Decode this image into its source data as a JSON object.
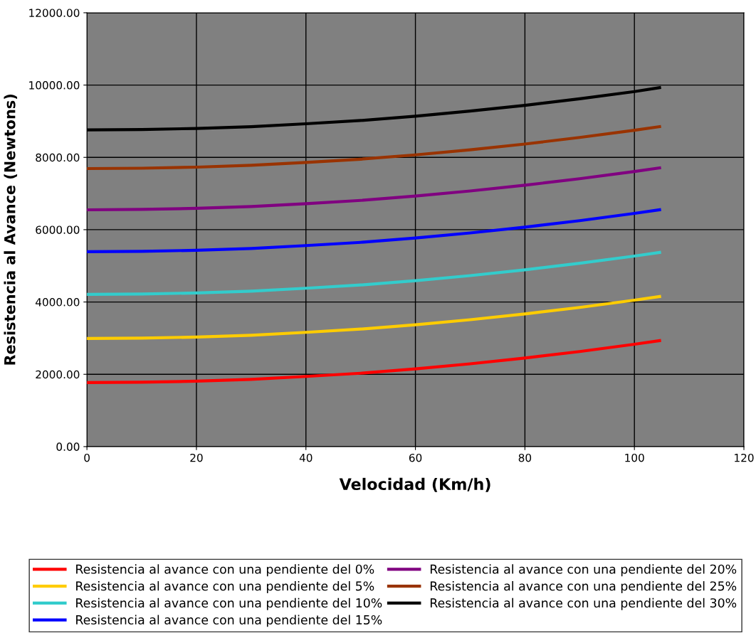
{
  "chart_data": {
    "type": "line",
    "xlabel": "Velocidad (Km/h)",
    "ylabel": "Resistencia al Avance (Newtons)",
    "x": [
      0,
      10,
      20,
      30,
      40,
      50,
      60,
      70,
      80,
      90,
      100,
      104.6
    ],
    "series": [
      {
        "name": "Resistencia al avance con una pendiente del 0%",
        "color": "#ff0000",
        "values": [
          1770,
          1780,
          1810,
          1860,
          1940,
          2030,
          2150,
          2290,
          2450,
          2630,
          2830,
          2930
        ]
      },
      {
        "name": "Resistencia al avance con una pendiente del 5%",
        "color": "#ffcc00",
        "values": [
          2990,
          3000,
          3030,
          3080,
          3160,
          3250,
          3370,
          3510,
          3670,
          3850,
          4050,
          4150
        ]
      },
      {
        "name": "Resistencia al avance con una pendiente del 10%",
        "color": "#33cccc",
        "values": [
          4210,
          4220,
          4250,
          4300,
          4380,
          4470,
          4590,
          4730,
          4890,
          5070,
          5270,
          5370
        ]
      },
      {
        "name": "Resistencia al avance con una pendiente del 15%",
        "color": "#0000ff",
        "values": [
          5390,
          5400,
          5430,
          5480,
          5560,
          5650,
          5770,
          5910,
          6070,
          6250,
          6450,
          6550
        ]
      },
      {
        "name": "Resistencia al avance con una pendiente del 20%",
        "color": "#800080",
        "values": [
          6550,
          6560,
          6590,
          6640,
          6720,
          6810,
          6930,
          7070,
          7230,
          7410,
          7610,
          7710
        ]
      },
      {
        "name": "Resistencia al avance con una pendiente del 25%",
        "color": "#993300",
        "values": [
          7690,
          7700,
          7730,
          7780,
          7860,
          7950,
          8070,
          8210,
          8370,
          8550,
          8750,
          8850
        ]
      },
      {
        "name": "Resistencia al avance con una pendiente del 30%",
        "color": "#000000",
        "values": [
          8760,
          8770,
          8800,
          8850,
          8930,
          9020,
          9140,
          9280,
          9440,
          9620,
          9820,
          9930
        ]
      }
    ],
    "xlim": [
      0,
      120
    ],
    "xticks": [
      0,
      20,
      40,
      60,
      80,
      100,
      120
    ],
    "ylim": [
      0,
      12000
    ],
    "yticks": [
      {
        "value": 0,
        "label": "0.00"
      },
      {
        "value": 2000,
        "label": "2000.00"
      },
      {
        "value": 4000,
        "label": "4000.00"
      },
      {
        "value": 6000,
        "label": "6000.00"
      },
      {
        "value": 8000,
        "label": "8000.00"
      },
      {
        "value": 10000,
        "label": "10000.00"
      },
      {
        "value": 12000,
        "label": "12000.00"
      }
    ],
    "grid": true,
    "legend": "bottom",
    "marker": "none",
    "line_style": "solid"
  }
}
